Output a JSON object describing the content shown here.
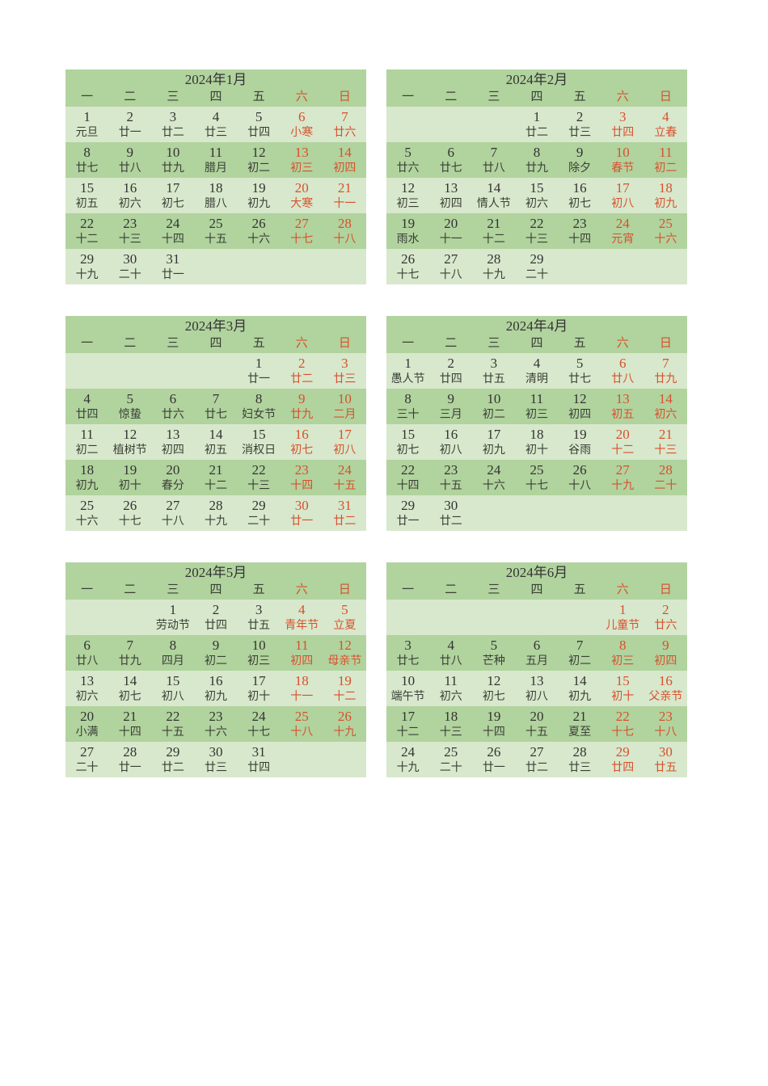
{
  "colors": {
    "band_dark": "#b1d39e",
    "band_light": "#d8e8cc",
    "weekend_red": "#d8502d",
    "text_dark": "#3a3f36",
    "title_dark": "#333333"
  },
  "weekday_headers": [
    "一",
    "二",
    "三",
    "四",
    "五",
    "六",
    "日"
  ],
  "months": [
    {
      "title": "2024年1月",
      "weeks": [
        [
          {
            "d": "1",
            "l": "元旦"
          },
          {
            "d": "2",
            "l": "廿一"
          },
          {
            "d": "3",
            "l": "廿二"
          },
          {
            "d": "4",
            "l": "廿三"
          },
          {
            "d": "5",
            "l": "廿四"
          },
          {
            "d": "6",
            "l": "小寒"
          },
          {
            "d": "7",
            "l": "廿六"
          }
        ],
        [
          {
            "d": "8",
            "l": "廿七"
          },
          {
            "d": "9",
            "l": "廿八"
          },
          {
            "d": "10",
            "l": "廿九"
          },
          {
            "d": "11",
            "l": "腊月"
          },
          {
            "d": "12",
            "l": "初二"
          },
          {
            "d": "13",
            "l": "初三"
          },
          {
            "d": "14",
            "l": "初四"
          }
        ],
        [
          {
            "d": "15",
            "l": "初五"
          },
          {
            "d": "16",
            "l": "初六"
          },
          {
            "d": "17",
            "l": "初七"
          },
          {
            "d": "18",
            "l": "腊八"
          },
          {
            "d": "19",
            "l": "初九"
          },
          {
            "d": "20",
            "l": "大寒"
          },
          {
            "d": "21",
            "l": "十一"
          }
        ],
        [
          {
            "d": "22",
            "l": "十二"
          },
          {
            "d": "23",
            "l": "十三"
          },
          {
            "d": "24",
            "l": "十四"
          },
          {
            "d": "25",
            "l": "十五"
          },
          {
            "d": "26",
            "l": "十六"
          },
          {
            "d": "27",
            "l": "十七"
          },
          {
            "d": "28",
            "l": "十八"
          }
        ],
        [
          {
            "d": "29",
            "l": "十九"
          },
          {
            "d": "30",
            "l": "二十"
          },
          {
            "d": "31",
            "l": "廿一"
          },
          null,
          null,
          null,
          null
        ]
      ]
    },
    {
      "title": "2024年2月",
      "weeks": [
        [
          null,
          null,
          null,
          {
            "d": "1",
            "l": "廿二"
          },
          {
            "d": "2",
            "l": "廿三"
          },
          {
            "d": "3",
            "l": "廿四"
          },
          {
            "d": "4",
            "l": "立春"
          }
        ],
        [
          {
            "d": "5",
            "l": "廿六"
          },
          {
            "d": "6",
            "l": "廿七"
          },
          {
            "d": "7",
            "l": "廿八"
          },
          {
            "d": "8",
            "l": "廿九"
          },
          {
            "d": "9",
            "l": "除夕"
          },
          {
            "d": "10",
            "l": "春节"
          },
          {
            "d": "11",
            "l": "初二"
          }
        ],
        [
          {
            "d": "12",
            "l": "初三"
          },
          {
            "d": "13",
            "l": "初四"
          },
          {
            "d": "14",
            "l": "情人节"
          },
          {
            "d": "15",
            "l": "初六"
          },
          {
            "d": "16",
            "l": "初七"
          },
          {
            "d": "17",
            "l": "初八"
          },
          {
            "d": "18",
            "l": "初九"
          }
        ],
        [
          {
            "d": "19",
            "l": "雨水"
          },
          {
            "d": "20",
            "l": "十一"
          },
          {
            "d": "21",
            "l": "十二"
          },
          {
            "d": "22",
            "l": "十三"
          },
          {
            "d": "23",
            "l": "十四"
          },
          {
            "d": "24",
            "l": "元宵"
          },
          {
            "d": "25",
            "l": "十六"
          }
        ],
        [
          {
            "d": "26",
            "l": "十七"
          },
          {
            "d": "27",
            "l": "十八"
          },
          {
            "d": "28",
            "l": "十九"
          },
          {
            "d": "29",
            "l": "二十"
          },
          null,
          null,
          null
        ]
      ]
    },
    {
      "title": "2024年3月",
      "weeks": [
        [
          null,
          null,
          null,
          null,
          {
            "d": "1",
            "l": "廿一"
          },
          {
            "d": "2",
            "l": "廿二"
          },
          {
            "d": "3",
            "l": "廿三"
          }
        ],
        [
          {
            "d": "4",
            "l": "廿四"
          },
          {
            "d": "5",
            "l": "惊蛰"
          },
          {
            "d": "6",
            "l": "廿六"
          },
          {
            "d": "7",
            "l": "廿七"
          },
          {
            "d": "8",
            "l": "妇女节"
          },
          {
            "d": "9",
            "l": "廿九"
          },
          {
            "d": "10",
            "l": "二月"
          }
        ],
        [
          {
            "d": "11",
            "l": "初二"
          },
          {
            "d": "12",
            "l": "植树节"
          },
          {
            "d": "13",
            "l": "初四"
          },
          {
            "d": "14",
            "l": "初五"
          },
          {
            "d": "15",
            "l": "消权日"
          },
          {
            "d": "16",
            "l": "初七"
          },
          {
            "d": "17",
            "l": "初八"
          }
        ],
        [
          {
            "d": "18",
            "l": "初九"
          },
          {
            "d": "19",
            "l": "初十"
          },
          {
            "d": "20",
            "l": "春分"
          },
          {
            "d": "21",
            "l": "十二"
          },
          {
            "d": "22",
            "l": "十三"
          },
          {
            "d": "23",
            "l": "十四"
          },
          {
            "d": "24",
            "l": "十五"
          }
        ],
        [
          {
            "d": "25",
            "l": "十六"
          },
          {
            "d": "26",
            "l": "十七"
          },
          {
            "d": "27",
            "l": "十八"
          },
          {
            "d": "28",
            "l": "十九"
          },
          {
            "d": "29",
            "l": "二十"
          },
          {
            "d": "30",
            "l": "廿一"
          },
          {
            "d": "31",
            "l": "廿二"
          }
        ]
      ]
    },
    {
      "title": "2024年4月",
      "weeks": [
        [
          {
            "d": "1",
            "l": "愚人节"
          },
          {
            "d": "2",
            "l": "廿四"
          },
          {
            "d": "3",
            "l": "廿五"
          },
          {
            "d": "4",
            "l": "清明"
          },
          {
            "d": "5",
            "l": "廿七"
          },
          {
            "d": "6",
            "l": "廿八"
          },
          {
            "d": "7",
            "l": "廿九"
          }
        ],
        [
          {
            "d": "8",
            "l": "三十"
          },
          {
            "d": "9",
            "l": "三月"
          },
          {
            "d": "10",
            "l": "初二"
          },
          {
            "d": "11",
            "l": "初三"
          },
          {
            "d": "12",
            "l": "初四"
          },
          {
            "d": "13",
            "l": "初五"
          },
          {
            "d": "14",
            "l": "初六"
          }
        ],
        [
          {
            "d": "15",
            "l": "初七"
          },
          {
            "d": "16",
            "l": "初八"
          },
          {
            "d": "17",
            "l": "初九"
          },
          {
            "d": "18",
            "l": "初十"
          },
          {
            "d": "19",
            "l": "谷雨"
          },
          {
            "d": "20",
            "l": "十二"
          },
          {
            "d": "21",
            "l": "十三"
          }
        ],
        [
          {
            "d": "22",
            "l": "十四"
          },
          {
            "d": "23",
            "l": "十五"
          },
          {
            "d": "24",
            "l": "十六"
          },
          {
            "d": "25",
            "l": "十七"
          },
          {
            "d": "26",
            "l": "十八"
          },
          {
            "d": "27",
            "l": "十九"
          },
          {
            "d": "28",
            "l": "二十"
          }
        ],
        [
          {
            "d": "29",
            "l": "廿一"
          },
          {
            "d": "30",
            "l": "廿二"
          },
          null,
          null,
          null,
          null,
          null
        ]
      ]
    },
    {
      "title": "2024年5月",
      "weeks": [
        [
          null,
          null,
          {
            "d": "1",
            "l": "劳动节"
          },
          {
            "d": "2",
            "l": "廿四"
          },
          {
            "d": "3",
            "l": "廿五"
          },
          {
            "d": "4",
            "l": "青年节"
          },
          {
            "d": "5",
            "l": "立夏"
          }
        ],
        [
          {
            "d": "6",
            "l": "廿八"
          },
          {
            "d": "7",
            "l": "廿九"
          },
          {
            "d": "8",
            "l": "四月"
          },
          {
            "d": "9",
            "l": "初二"
          },
          {
            "d": "10",
            "l": "初三"
          },
          {
            "d": "11",
            "l": "初四"
          },
          {
            "d": "12",
            "l": "母亲节"
          }
        ],
        [
          {
            "d": "13",
            "l": "初六"
          },
          {
            "d": "14",
            "l": "初七"
          },
          {
            "d": "15",
            "l": "初八"
          },
          {
            "d": "16",
            "l": "初九"
          },
          {
            "d": "17",
            "l": "初十"
          },
          {
            "d": "18",
            "l": "十一"
          },
          {
            "d": "19",
            "l": "十二"
          }
        ],
        [
          {
            "d": "20",
            "l": "小满"
          },
          {
            "d": "21",
            "l": "十四"
          },
          {
            "d": "22",
            "l": "十五"
          },
          {
            "d": "23",
            "l": "十六"
          },
          {
            "d": "24",
            "l": "十七"
          },
          {
            "d": "25",
            "l": "十八"
          },
          {
            "d": "26",
            "l": "十九"
          }
        ],
        [
          {
            "d": "27",
            "l": "二十"
          },
          {
            "d": "28",
            "l": "廿一"
          },
          {
            "d": "29",
            "l": "廿二"
          },
          {
            "d": "30",
            "l": "廿三"
          },
          {
            "d": "31",
            "l": "廿四"
          },
          null,
          null
        ]
      ]
    },
    {
      "title": "2024年6月",
      "weeks": [
        [
          null,
          null,
          null,
          null,
          null,
          {
            "d": "1",
            "l": "儿童节"
          },
          {
            "d": "2",
            "l": "廿六"
          }
        ],
        [
          {
            "d": "3",
            "l": "廿七"
          },
          {
            "d": "4",
            "l": "廿八"
          },
          {
            "d": "5",
            "l": "芒种"
          },
          {
            "d": "6",
            "l": "五月"
          },
          {
            "d": "7",
            "l": "初二"
          },
          {
            "d": "8",
            "l": "初三"
          },
          {
            "d": "9",
            "l": "初四"
          }
        ],
        [
          {
            "d": "10",
            "l": "端午节"
          },
          {
            "d": "11",
            "l": "初六"
          },
          {
            "d": "12",
            "l": "初七"
          },
          {
            "d": "13",
            "l": "初八"
          },
          {
            "d": "14",
            "l": "初九"
          },
          {
            "d": "15",
            "l": "初十"
          },
          {
            "d": "16",
            "l": "父亲节"
          }
        ],
        [
          {
            "d": "17",
            "l": "十二"
          },
          {
            "d": "18",
            "l": "十三"
          },
          {
            "d": "19",
            "l": "十四"
          },
          {
            "d": "20",
            "l": "十五"
          },
          {
            "d": "21",
            "l": "夏至"
          },
          {
            "d": "22",
            "l": "十七"
          },
          {
            "d": "23",
            "l": "十八"
          }
        ],
        [
          {
            "d": "24",
            "l": "十九"
          },
          {
            "d": "25",
            "l": "二十"
          },
          {
            "d": "26",
            "l": "廿一"
          },
          {
            "d": "27",
            "l": "廿二"
          },
          {
            "d": "28",
            "l": "廿三"
          },
          {
            "d": "29",
            "l": "廿四"
          },
          {
            "d": "30",
            "l": "廿五"
          }
        ]
      ]
    }
  ]
}
